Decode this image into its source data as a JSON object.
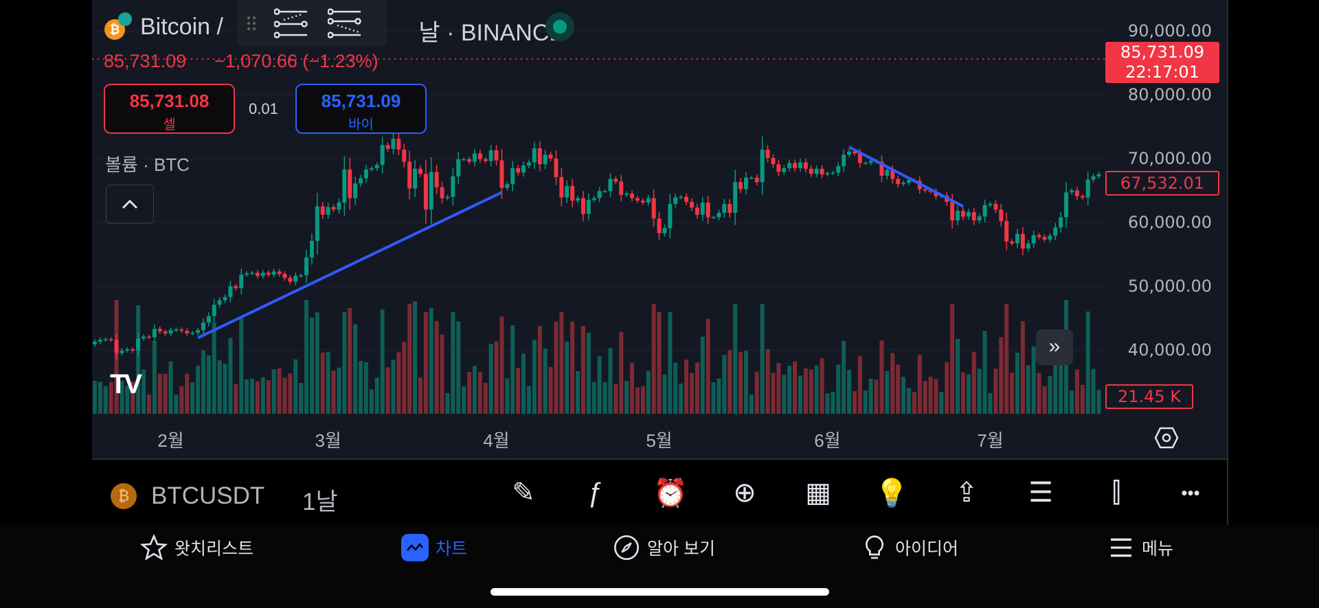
{
  "header": {
    "symbol_name": "Bitcoin /",
    "exchange_suffix": "날 · BINANCE",
    "market_status": "open",
    "status_color": "#089981"
  },
  "quote": {
    "last": "85,731.09",
    "change": "−1,070.66 (−1.23%)"
  },
  "trade": {
    "sell_price": "85,731.08",
    "sell_label": "셀",
    "spread": "0.01",
    "buy_price": "85,731.09",
    "buy_label": "바이"
  },
  "volume_legend": "볼륨 · BTC",
  "price_axis": {
    "ticks": [
      "90,000.00",
      "80,000.00",
      "70,000.00",
      "60,000.00",
      "50,000.00",
      "40,000.00"
    ],
    "last_price": "85,731.09",
    "countdown": "22:17:01",
    "bar_close": "67,532.01",
    "volume_value": "21.45 K"
  },
  "colors": {
    "up": "#089981",
    "down": "#f23645",
    "drawing": "#2f5bff",
    "background": "#141823"
  },
  "chart_data": {
    "type": "candlestick",
    "x_labels": [
      "2월",
      "3월",
      "4월",
      "5월",
      "6월",
      "7월"
    ],
    "ylim": [
      35000,
      95000
    ],
    "closes_by_month": [
      [
        41300,
        41600,
        41700,
        41600,
        39500,
        39900,
        40100,
        39900,
        41800,
        42100,
        42000,
        43300,
        42900,
        42600
      ],
      [
        43100,
        43200,
        43000,
        42600,
        42700,
        43100,
        44300,
        45300,
        47100,
        47800,
        48300,
        50000,
        49700,
        51800,
        52000,
        52100,
        51600,
        52100,
        51800,
        52300,
        51900,
        51300,
        50700,
        51600,
        51700,
        54500,
        57100,
        62500,
        61200
      ],
      [
        62400,
        62000,
        63100,
        68300,
        63800,
        66100,
        66900,
        68300,
        68500,
        69000,
        72100,
        71500,
        73100,
        71400,
        69500,
        65300,
        68400,
        67600,
        62000,
        67900,
        65500,
        63800,
        64000,
        67200,
        69900,
        69900,
        69500,
        70800,
        69900,
        69600,
        71300
      ],
      [
        69700,
        65400,
        66000,
        68500,
        67800,
        68900,
        69400,
        71600,
        69100,
        70600,
        70000,
        67100,
        63900,
        65700,
        63400,
        63800,
        61300,
        63500,
        63800,
        64900,
        64900,
        66800,
        66400,
        64300,
        64500,
        63800,
        63400,
        63100,
        63800,
        60600
      ],
      [
        58300,
        59100,
        62900,
        63900,
        64000,
        63200,
        62300,
        61200,
        63100,
        60800,
        60800,
        61500,
        62900,
        61500,
        66300,
        65200,
        67000,
        67000,
        66300,
        71400,
        70100,
        69100,
        67900,
        68500,
        69300,
        68500,
        69400,
        68400,
        67600,
        68400,
        67500
      ],
      [
        67700,
        67800,
        68800,
        70600,
        71100,
        70800,
        69300,
        69300,
        69600,
        69500,
        67300,
        68200,
        66800,
        66000,
        66200,
        66600,
        66500,
        65200,
        65000,
        64800,
        64100,
        64200,
        63200,
        60300,
        61800,
        60900,
        61600,
        60300,
        60900,
        62700
      ],
      [
        62900,
        62000,
        60200,
        57000,
        56700,
        58200,
        55900,
        56700,
        58000,
        57700,
        57300,
        57900,
        59200,
        60800,
        64700,
        65000,
        64100,
        63900,
        66700,
        67200,
        67532.01
      ]
    ],
    "trendlines": [
      {
        "from_price": 41900,
        "to_price": 64700
      },
      {
        "from_price": 71800,
        "to_price": 62500
      }
    ]
  },
  "toolbar": {
    "symbol": "BTCUSDT",
    "interval": "1날",
    "icons": [
      "draw-icon",
      "indicators-icon",
      "alert-icon",
      "add-icon",
      "layout-icon",
      "ideas-icon",
      "share-icon",
      "watchlist-details-icon",
      "chart-type-icon",
      "more-icon"
    ]
  },
  "nav": [
    {
      "label": "왓치리스트",
      "icon": "star-icon"
    },
    {
      "label": "차트",
      "icon": "chart-icon",
      "active": true
    },
    {
      "label": "알아 보기",
      "icon": "compass-icon"
    },
    {
      "label": "아이디어",
      "icon": "lightbulb-icon"
    },
    {
      "label": "메뉴",
      "icon": "menu-icon"
    }
  ]
}
